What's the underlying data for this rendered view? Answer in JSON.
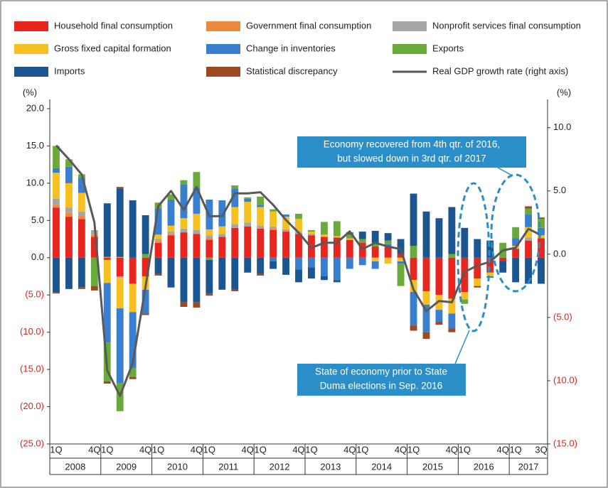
{
  "chart_data": {
    "type": "bar",
    "stacked": true,
    "y_unit": "(%)",
    "y2_unit": "(%)",
    "negative_tick_color": "#e0201c",
    "categories": [
      "1Q",
      null,
      null,
      "4Q",
      "1Q",
      null,
      null,
      "4Q",
      "1Q",
      null,
      null,
      "4Q",
      "1Q",
      null,
      null,
      "4Q",
      "1Q",
      null,
      null,
      "4Q",
      "1Q",
      null,
      null,
      "4Q",
      "1Q",
      null,
      null,
      "4Q",
      "1Q",
      null,
      null,
      "4Q",
      "1Q",
      null,
      null,
      "4Q",
      "1Q",
      null,
      "3Q"
    ],
    "years": [
      "2008",
      "2009",
      "2010",
      "2011",
      "2012",
      "2013",
      "2014",
      "2015",
      "2016",
      "2017"
    ],
    "ylim": [
      -25,
      20
    ],
    "yticks": [
      {
        "value": 20,
        "label": "20.0"
      },
      {
        "value": 15,
        "label": "15.0"
      },
      {
        "value": 10,
        "label": "10.0"
      },
      {
        "value": 5,
        "label": "5.0"
      },
      {
        "value": 0,
        "label": "0.0"
      },
      {
        "value": -5,
        "label": "(5.0)"
      },
      {
        "value": -10,
        "label": "(10.0)"
      },
      {
        "value": -15,
        "label": "(15.0)"
      },
      {
        "value": -20,
        "label": "(20.0)"
      },
      {
        "value": -25,
        "label": "(25.0)"
      }
    ],
    "y2lim": [
      -15,
      11.5
    ],
    "y2ticks": [
      {
        "value": 10,
        "label": "10.0"
      },
      {
        "value": 5,
        "label": "5.0"
      },
      {
        "value": 0,
        "label": "0.0"
      },
      {
        "value": -5,
        "label": "(5.0)"
      },
      {
        "value": -10,
        "label": "(10.0)"
      },
      {
        "value": -15,
        "label": "(15.0)"
      }
    ],
    "series": [
      {
        "name": "Household final consumption",
        "color": "#e8251f",
        "values": [
          6.7,
          5.5,
          5.2,
          2.8,
          -0.3,
          -2.5,
          -3.5,
          -2.5,
          2.0,
          3.0,
          3.4,
          3.2,
          2.4,
          2.8,
          4.0,
          4.2,
          3.9,
          3.7,
          3.5,
          3.2,
          3.0,
          2.8,
          2.7,
          2.4,
          2.0,
          1.5,
          1.5,
          0.5,
          -3.0,
          -4.5,
          -5.0,
          -5.5,
          -4.6,
          -2.8,
          -2.0,
          -0.5,
          1.2,
          2.3,
          2.6
        ]
      },
      {
        "name": "Government final consumption",
        "color": "#ec8a3c",
        "values": [
          0.4,
          0.5,
          0.4,
          0.3,
          0.1,
          0.1,
          0.0,
          0.0,
          0.2,
          0.2,
          0.0,
          0.0,
          0.2,
          0.0,
          0.0,
          0.0,
          0.0,
          0.2,
          0.0,
          0.0,
          0.0,
          0.0,
          0.0,
          0.0,
          0.0,
          0.0,
          0.0,
          0.0,
          0.0,
          0.0,
          0.0,
          0.0,
          0.0,
          0.0,
          0.0,
          0.0,
          0.0,
          0.0,
          0.0
        ]
      },
      {
        "name": "Nonprofit services final consumption",
        "color": "#a6a6a6",
        "values": [
          0.8,
          0.7,
          0.6,
          0.6,
          0.0,
          -0.2,
          0.0,
          0.0,
          0.3,
          0.3,
          0.5,
          0.5,
          0.4,
          0.4,
          0.5,
          0.5,
          0.4,
          0.3,
          0.3,
          0.3,
          0.2,
          0.0,
          0.0,
          0.0,
          0.0,
          0.0,
          0.0,
          0.0,
          0.0,
          0.0,
          0.0,
          0.0,
          0.0,
          0.0,
          0.0,
          0.0,
          0.0,
          0.4,
          0.0
        ]
      },
      {
        "name": "Gross fixed capital formation",
        "color": "#f6c020",
        "values": [
          3.5,
          3.3,
          2.5,
          0.0,
          -3.1,
          -4.1,
          -3.8,
          -1.8,
          0.6,
          0.8,
          1.4,
          2.2,
          0.8,
          1.0,
          2.3,
          2.8,
          2.5,
          2.0,
          1.7,
          1.7,
          0.3,
          0.3,
          0.2,
          0.2,
          0.0,
          -0.5,
          -0.8,
          -0.5,
          -1.6,
          -1.8,
          -2.0,
          -2.0,
          -1.0,
          -1.0,
          -0.5,
          0.0,
          0.4,
          1.4,
          0.4
        ]
      },
      {
        "name": "Change in inventories",
        "color": "#3a7ecf",
        "values": [
          0.6,
          2.2,
          2.0,
          0.0,
          -8.0,
          -10.0,
          -7.5,
          -3.2,
          3.5,
          3.5,
          4.5,
          3.5,
          4.0,
          3.5,
          2.5,
          0.4,
          0.3,
          -0.5,
          0.3,
          -1.6,
          -1.3,
          -2.5,
          -3.0,
          -1.5,
          -1.0,
          -1.0,
          0.3,
          -0.3,
          -4.5,
          -3.7,
          -1.6,
          -2.0,
          0.0,
          0.0,
          -0.2,
          0.0,
          1.0,
          1.7,
          1.0
        ]
      },
      {
        "name": "Exports",
        "color": "#6aaa3a",
        "values": [
          3.0,
          1.0,
          0.5,
          -3.8,
          -5.2,
          -3.8,
          -1.2,
          0.5,
          0.8,
          0.7,
          0.6,
          2.1,
          -0.3,
          0.0,
          0.4,
          0.2,
          1.1,
          0.3,
          0.0,
          0.7,
          0.2,
          1.7,
          2.0,
          0.5,
          0.5,
          0.5,
          0.5,
          -3.0,
          1.6,
          0.0,
          0.0,
          0.5,
          -0.6,
          0.0,
          0.0,
          2.0,
          1.5,
          0.8,
          1.2
        ]
      },
      {
        "name": "Imports",
        "color": "#1b5690",
        "values": [
          -4.6,
          -4.2,
          -4.0,
          0.0,
          7.2,
          9.2,
          7.7,
          5.2,
          -2.2,
          -4.0,
          -6.0,
          -6.0,
          -4.5,
          -4.3,
          -4.3,
          -2.0,
          -2.2,
          -1.0,
          -2.3,
          -1.7,
          -1.5,
          -0.5,
          -0.3,
          0.3,
          1.0,
          1.6,
          1.0,
          2.0,
          7.0,
          6.2,
          5.3,
          6.3,
          4.0,
          2.5,
          2.3,
          -1.5,
          -3.3,
          -3.5,
          -3.5
        ]
      },
      {
        "name": "Statistical discrepancy",
        "color": "#9b4b1f",
        "values": [
          -0.2,
          0.0,
          -0.2,
          -0.6,
          -0.3,
          0.2,
          -0.3,
          -0.2,
          -0.2,
          0.0,
          -0.6,
          -0.7,
          -0.3,
          0.0,
          -0.2,
          0.0,
          -0.2,
          0.0,
          0.0,
          0.0,
          0.0,
          0.0,
          0.0,
          0.0,
          0.0,
          0.0,
          0.0,
          0.0,
          -0.7,
          -0.9,
          -0.4,
          -0.5,
          0.0,
          -0.2,
          0.0,
          0.0,
          0.0,
          0.3,
          0.2
        ]
      },
      {
        "name": "Real GDP growth rate (right axis)",
        "type": "line",
        "axis": "y2",
        "color": "#595959",
        "values": [
          8.6,
          7.5,
          6.3,
          2.5,
          -9.2,
          -11.2,
          -8.6,
          -2.6,
          3.8,
          5.0,
          3.5,
          5.3,
          3.0,
          3.0,
          4.8,
          4.8,
          4.9,
          3.9,
          2.7,
          1.7,
          0.5,
          0.9,
          0.9,
          1.8,
          0.4,
          0.9,
          0.6,
          0.4,
          -2.8,
          -4.5,
          -3.7,
          -3.8,
          -1.4,
          -0.9,
          -0.6,
          0.3,
          0.5,
          2.0,
          1.5
        ]
      }
    ],
    "annotations": [
      {
        "lines": [
          "Economy recovered from 4th qtr. of 2016,",
          "but slowed down in 3rd qtr. of 2017"
        ]
      },
      {
        "lines": [
          "State of economy prior to State",
          "Duma elections in Sep. 2016"
        ]
      }
    ]
  }
}
